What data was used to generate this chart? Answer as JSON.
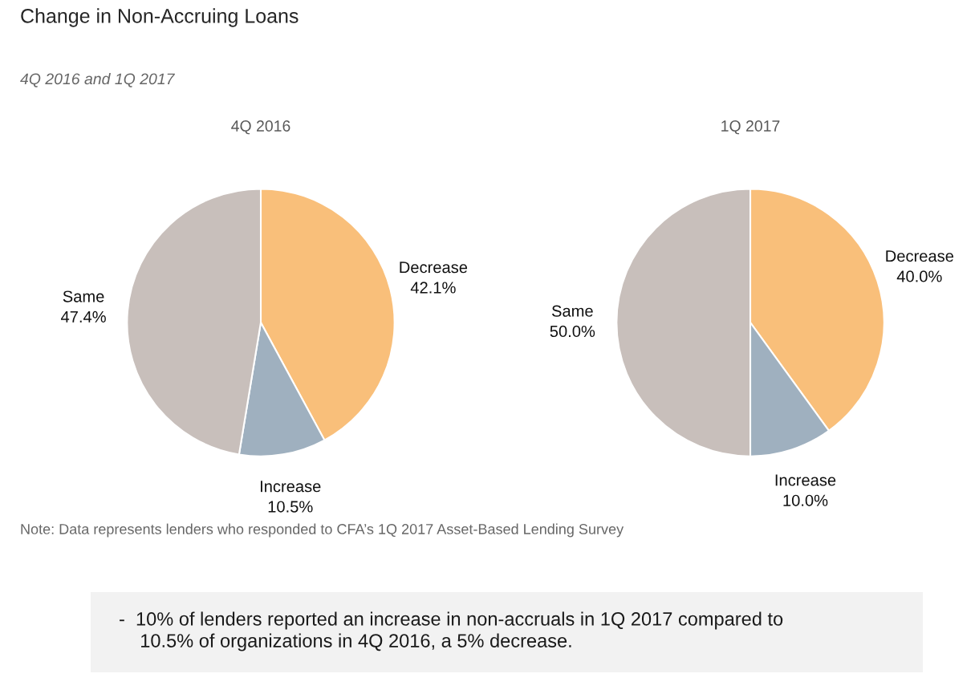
{
  "chart_data": [
    {
      "type": "other",
      "title": "Change in Non-Accruing Loans",
      "subtitle": "4Q 2016 and 1Q 2017"
    },
    {
      "type": "pie",
      "title": "4Q 2016",
      "categories": [
        "Decrease",
        "Increase",
        "Same"
      ],
      "values": [
        42.1,
        10.5,
        47.4
      ],
      "colors": [
        "#f9bf7a",
        "#9fb0bf",
        "#c8bfbb"
      ],
      "value_labels": [
        "42.1%",
        "10.5%",
        "47.4%"
      ]
    },
    {
      "type": "pie",
      "title": "1Q 2017",
      "categories": [
        "Decrease",
        "Increase",
        "Same"
      ],
      "values": [
        40.0,
        10.0,
        50.0
      ],
      "colors": [
        "#f9bf7a",
        "#9fb0bf",
        "#c8bfbb"
      ],
      "value_labels": [
        "40.0%",
        "10.0%",
        "50.0%"
      ]
    },
    {
      "type": "other",
      "annotations": [
        "Note: Data represents lenders who responded to CFA’s 1Q 2017 Asset-Based Lending Survey",
        "-  10% of lenders reported an increase in non-accruals in 1Q 2017 compared to\n    10.5% of organizations in 4Q 2016, a 5% decrease."
      ]
    }
  ]
}
